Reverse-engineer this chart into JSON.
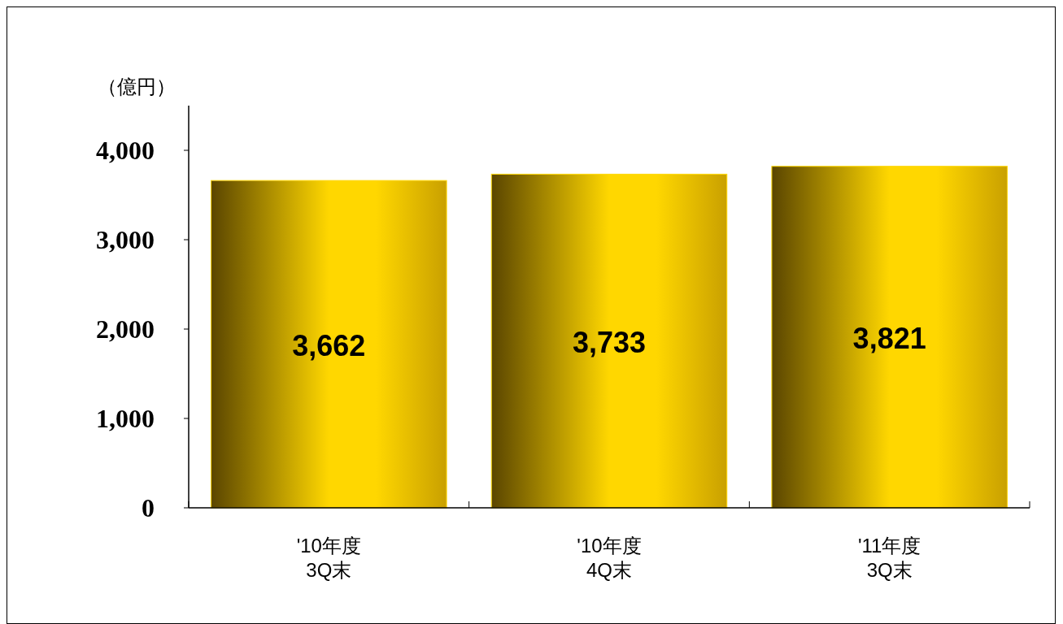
{
  "chart_data": {
    "type": "bar",
    "ylabel": "（億円）",
    "categories": [
      "'10年度\n3Q末",
      "'10年度\n4Q末",
      "'11年度\n3Q末"
    ],
    "values": [
      3662,
      3733,
      3821
    ],
    "color": "#ffd700",
    "ylim": [
      0,
      4500
    ],
    "yticks": [
      {
        "value": 0,
        "label": "0"
      },
      {
        "value": 1000,
        "label": "1,000"
      },
      {
        "value": 2000,
        "label": "2,000"
      },
      {
        "value": 3000,
        "label": "3,000"
      },
      {
        "value": 4000,
        "label": "4,000"
      }
    ],
    "value_labels": [
      "3,662",
      "3,733",
      "3,821"
    ],
    "grid": false
  }
}
